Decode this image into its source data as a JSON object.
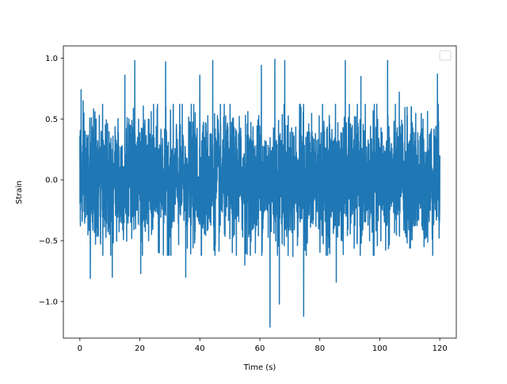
{
  "chart_data": {
    "type": "line",
    "title": "",
    "xlabel": "Time (s)",
    "ylabel": "Strain",
    "xlim": [
      -5.5,
      125.5
    ],
    "ylim": [
      -1.3,
      1.1
    ],
    "x_ticks": [
      0,
      20,
      40,
      60,
      80,
      100,
      120
    ],
    "y_ticks": [
      -1.0,
      -0.5,
      0.0,
      0.5,
      1.0
    ],
    "x_tick_labels": [
      "0",
      "20",
      "40",
      "60",
      "80",
      "100",
      "120"
    ],
    "y_tick_labels": [
      "−1.0",
      "−0.5",
      "0.0",
      "0.5",
      "1.0"
    ],
    "grid": false,
    "legend": {
      "placement": "top-right",
      "entries": []
    },
    "series": [
      {
        "color": "#1f77b4",
        "x_range": [
          0,
          120
        ],
        "approx_std": 0.25,
        "y_range_observed": [
          -1.21,
          1.0
        ],
        "notable_points": [
          {
            "x": 0.0,
            "y": 0.36
          },
          {
            "x": 0.4,
            "y": 0.74
          },
          {
            "x": 1.1,
            "y": 0.65
          },
          {
            "x": 3.5,
            "y": -0.81
          },
          {
            "x": 10.8,
            "y": -0.8
          },
          {
            "x": 15.0,
            "y": 0.86
          },
          {
            "x": 18.3,
            "y": 0.98
          },
          {
            "x": 20.3,
            "y": -0.77
          },
          {
            "x": 26.5,
            "y": -0.6
          },
          {
            "x": 28.6,
            "y": 0.97
          },
          {
            "x": 35.3,
            "y": -0.8
          },
          {
            "x": 40.0,
            "y": 0.86
          },
          {
            "x": 44.3,
            "y": 0.98
          },
          {
            "x": 55.0,
            "y": -0.7
          },
          {
            "x": 60.5,
            "y": 0.94
          },
          {
            "x": 63.4,
            "y": -1.21
          },
          {
            "x": 65.0,
            "y": 0.99
          },
          {
            "x": 66.5,
            "y": -1.02
          },
          {
            "x": 68.3,
            "y": 0.98
          },
          {
            "x": 71.0,
            "y": -0.63
          },
          {
            "x": 73.5,
            "y": 0.62
          },
          {
            "x": 74.6,
            "y": -1.12
          },
          {
            "x": 85.5,
            "y": -0.84
          },
          {
            "x": 88.5,
            "y": 0.98
          },
          {
            "x": 93.7,
            "y": 0.85
          },
          {
            "x": 102.6,
            "y": 0.98
          },
          {
            "x": 106.5,
            "y": 0.72
          },
          {
            "x": 110.0,
            "y": -0.56
          },
          {
            "x": 119.2,
            "y": 0.87
          },
          {
            "x": 119.8,
            "y": -0.36
          },
          {
            "x": 120.0,
            "y": 0.2
          }
        ]
      }
    ]
  }
}
